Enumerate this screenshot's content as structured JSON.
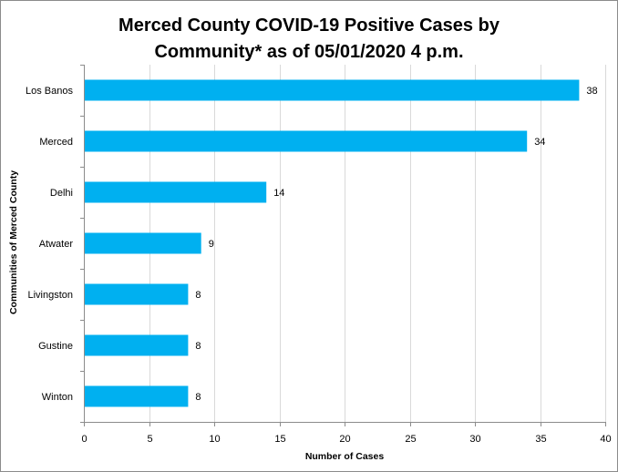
{
  "chart_data": {
    "type": "bar",
    "orientation": "horizontal",
    "title_lines": [
      "Merced County COVID-19 Positive Cases by",
      "Community* as of 05/01/2020 4 p.m."
    ],
    "xlabel": "Number of Cases",
    "ylabel": "Communities of Merced County",
    "categories": [
      "Los Banos",
      "Merced",
      "Delhi",
      "Atwater",
      "Livingston",
      "Gustine",
      "Winton"
    ],
    "values": [
      38,
      34,
      14,
      9,
      8,
      8,
      8
    ],
    "xlim": [
      0,
      40
    ],
    "xticks": [
      0,
      5,
      10,
      15,
      20,
      25,
      30,
      35,
      40
    ],
    "grid": "vertical",
    "data_labels": true,
    "legend": "none",
    "bar_color": "#00b0f0",
    "grid_color": "#d9d9d9",
    "axis_color": "#8c8c8c"
  }
}
